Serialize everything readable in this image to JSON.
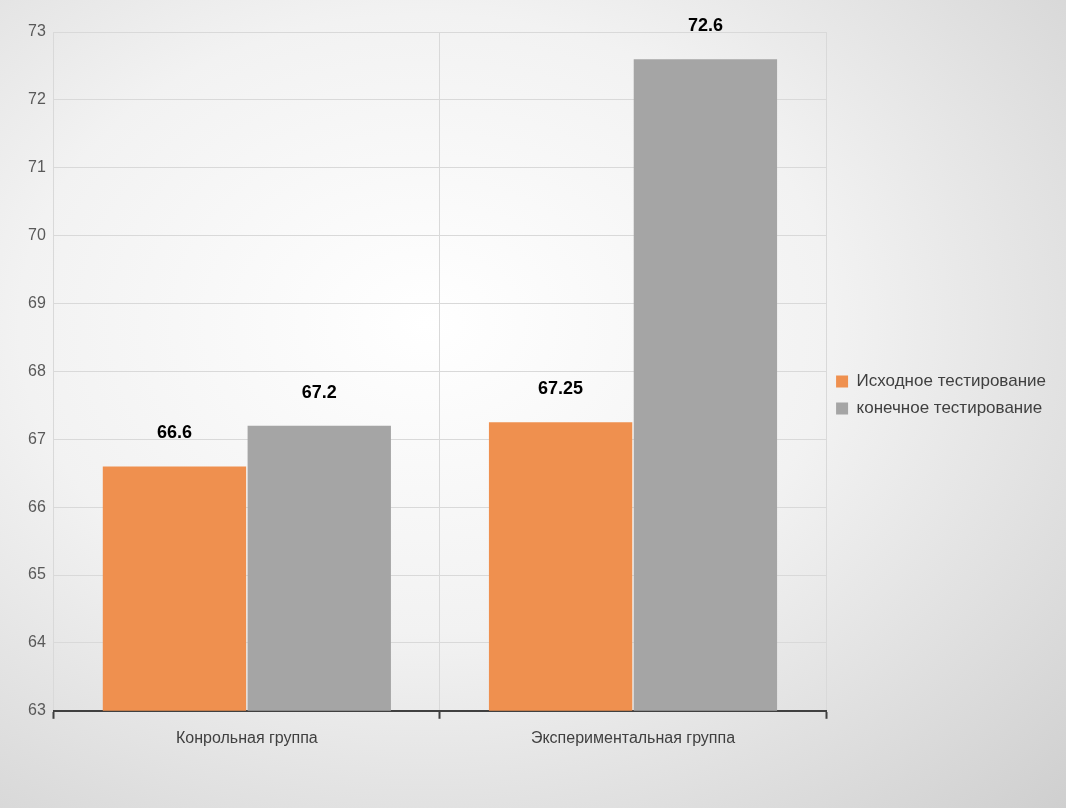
{
  "chart_data": {
    "type": "bar",
    "categories": [
      "Конрольная группа",
      "Экспериментальная группа"
    ],
    "series": [
      {
        "name": "Исходное тестирование",
        "color": "#ef904f",
        "values": [
          66.6,
          67.25
        ]
      },
      {
        "name": "конечное тестирование",
        "color": "#a5a5a5",
        "values": [
          67.2,
          72.6
        ]
      }
    ],
    "ylim": [
      63,
      73
    ],
    "yticks": [
      63,
      64,
      65,
      66,
      67,
      68,
      69,
      70,
      71,
      72,
      73
    ],
    "grid": true,
    "legend": "right",
    "data_labels": true
  }
}
